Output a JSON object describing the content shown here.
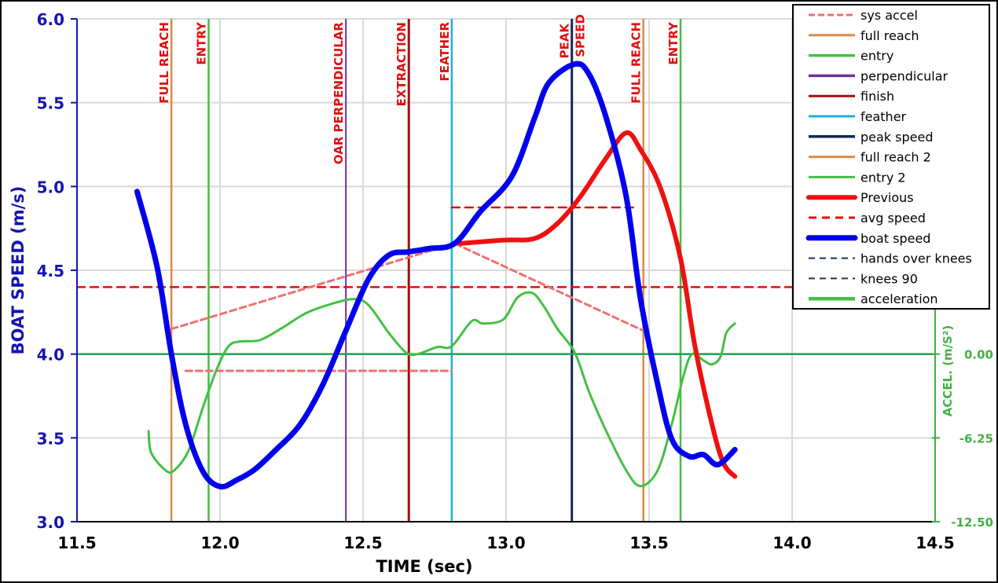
{
  "chart_data": {
    "type": "line",
    "xlabel": "TIME (sec)",
    "ylabel": "BOAT SPEED (m/s)",
    "y2label": "ACCEL.  (m/S²)",
    "xlim": [
      11.5,
      14.5
    ],
    "ylim": [
      3.0,
      6.0
    ],
    "y2lim": [
      -12.5,
      25
    ],
    "xticks": [
      "11.5",
      "12.0",
      "12.5",
      "13.0",
      "13.5",
      "14.0",
      "14.5"
    ],
    "yticks": [
      "3.0",
      "3.5",
      "4.0",
      "4.5",
      "5.0",
      "5.5",
      "6.0"
    ],
    "y2ticks": [
      "0.00",
      "-6.25",
      "-12.50"
    ],
    "grid": true,
    "legend_position": "top-right",
    "colors": {
      "boat_speed": "#0000ee",
      "previous": "#ee1111",
      "acceleration": "#44c044",
      "sys_accel": "#f07070",
      "avg_speed": "#dd1111",
      "full_reach": "#d98b4a",
      "entry": "#44c044",
      "perpendicular": "#7030a0",
      "finish": "#a01010",
      "feather": "#20b0d8",
      "peak_speed": "#10285a",
      "label": "#e01010",
      "left_axis": "#1414b4",
      "right_axis": "#44b044"
    },
    "legend": [
      "sys accel",
      "full reach",
      "entry",
      "perpendicular",
      "finish",
      "feather",
      "peak speed",
      "full reach 2",
      "entry 2",
      "Previous",
      "avg speed",
      "boat speed",
      "hands over knees",
      "knees 90",
      "acceleration"
    ],
    "events": [
      {
        "name": "full reach",
        "label": "FULL REACH",
        "x": 11.83
      },
      {
        "name": "entry",
        "label": "ENTRY",
        "x": 11.96
      },
      {
        "name": "perpendicular",
        "label": "OAR PERPENDICULAR",
        "x": 12.44
      },
      {
        "name": "finish",
        "label": "EXTRACTION",
        "x": 12.66
      },
      {
        "name": "feather",
        "label": "FEATHER",
        "x": 12.81
      },
      {
        "name": "peak speed",
        "label": "PEAK SPEED",
        "x": 13.23
      },
      {
        "name": "full reach 2",
        "label": "FULL REACH",
        "x": 13.48
      },
      {
        "name": "entry 2",
        "label": "ENTRY",
        "x": 13.61
      }
    ],
    "series": [
      {
        "name": "boat speed",
        "axis": "left",
        "x": [
          11.71,
          11.78,
          11.83,
          11.88,
          11.94,
          12.0,
          12.06,
          12.12,
          12.19,
          12.28,
          12.36,
          12.44,
          12.52,
          12.59,
          12.66,
          12.73,
          12.82,
          12.91,
          13.02,
          13.1,
          13.15,
          13.24,
          13.29,
          13.35,
          13.42,
          13.47,
          13.53,
          13.58,
          13.64,
          13.69,
          13.74,
          13.8
        ],
        "y": [
          4.97,
          4.52,
          4.0,
          3.58,
          3.3,
          3.21,
          3.25,
          3.31,
          3.42,
          3.58,
          3.82,
          4.14,
          4.45,
          4.59,
          4.61,
          4.63,
          4.66,
          4.85,
          5.06,
          5.41,
          5.62,
          5.73,
          5.67,
          5.41,
          4.94,
          4.33,
          3.82,
          3.49,
          3.39,
          3.4,
          3.34,
          3.43
        ]
      },
      {
        "name": "Previous",
        "axis": "left",
        "x": [
          12.84,
          12.99,
          13.1,
          13.18,
          13.26,
          13.35,
          13.42,
          13.47,
          13.54,
          13.61,
          13.66,
          13.72,
          13.76,
          13.8
        ],
        "y": [
          4.66,
          4.68,
          4.69,
          4.78,
          4.94,
          5.17,
          5.32,
          5.22,
          4.99,
          4.57,
          4.05,
          3.58,
          3.35,
          3.27
        ]
      },
      {
        "name": "acceleration",
        "axis": "right",
        "x": [
          11.75,
          11.76,
          11.81,
          11.84,
          11.89,
          11.94,
          11.99,
          12.03,
          12.07,
          12.14,
          12.22,
          12.3,
          12.39,
          12.47,
          12.52,
          12.59,
          12.65,
          12.69,
          12.76,
          12.81,
          12.88,
          12.92,
          12.99,
          13.04,
          13.09,
          13.13,
          13.18,
          13.24,
          13.29,
          13.35,
          13.42,
          13.47,
          13.53,
          13.58,
          13.62,
          13.65,
          13.69,
          13.72,
          13.75,
          13.77,
          13.8
        ],
        "y": [
          -5.74,
          -7.38,
          -8.67,
          -8.67,
          -7.2,
          -3.98,
          -1.05,
          0.59,
          0.94,
          1.05,
          1.99,
          3.05,
          3.75,
          4.1,
          3.63,
          1.58,
          0.12,
          0,
          0.53,
          0.59,
          2.46,
          2.28,
          2.58,
          4.22,
          4.57,
          3.63,
          1.87,
          0.12,
          -2.81,
          -5.74,
          -8.67,
          -9.84,
          -8.67,
          -5.16,
          -1.64,
          0,
          -0.47,
          -0.76,
          -0.18,
          1.58,
          2.28
        ]
      },
      {
        "name": "sys accel",
        "axis": "left",
        "x": [
          11.83,
          12.82,
          13.48
        ],
        "y": [
          4.15,
          4.66,
          4.14
        ]
      },
      {
        "name": "sys accel",
        "axis": "left",
        "x": [
          11.88,
          12.81
        ],
        "y": [
          3.9,
          3.9
        ]
      },
      {
        "name": "avg speed",
        "axis": "left",
        "x": [
          11.5,
          14.5
        ],
        "y": [
          4.4,
          4.4
        ]
      },
      {
        "name": "avg speed",
        "axis": "left",
        "x": [
          12.81,
          13.46
        ],
        "y": [
          4.875,
          4.875
        ]
      },
      {
        "name": "acceleration zero",
        "axis": "right",
        "x": [
          11.5,
          14.5
        ],
        "y": [
          0,
          0
        ]
      }
    ]
  }
}
